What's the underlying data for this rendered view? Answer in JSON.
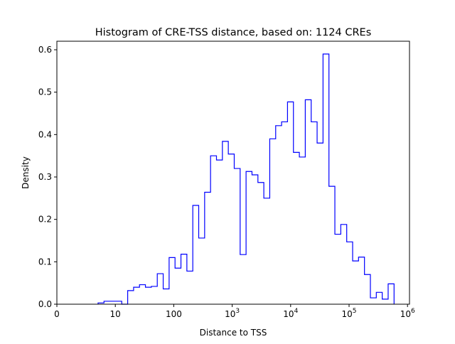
{
  "chart_data": {
    "type": "histogram",
    "title": "Histogram of CRE-TSS distance, based on: 1124 CREs",
    "xlabel": "Distance to TSS",
    "ylabel": "Density",
    "x_scale": "log10 (0 shown at origin)",
    "xlim_log10": [
      0,
      6.05
    ],
    "ylim": [
      0,
      0.62
    ],
    "x_ticks": [
      {
        "log10": 0,
        "label": "0",
        "exp": ""
      },
      {
        "log10": 1,
        "label": "10",
        "exp": ""
      },
      {
        "log10": 2,
        "label": "100",
        "exp": ""
      },
      {
        "log10": 3,
        "label": "10",
        "exp": "3"
      },
      {
        "log10": 4,
        "label": "10",
        "exp": "4"
      },
      {
        "log10": 5,
        "label": "10",
        "exp": "5"
      },
      {
        "log10": 6,
        "label": "10",
        "exp": "6"
      }
    ],
    "y_ticks": [
      "0.0",
      "0.1",
      "0.2",
      "0.3",
      "0.4",
      "0.5",
      "0.6"
    ],
    "grid": false,
    "color": "#0000ff",
    "bin_start_log10": 0.705,
    "bin_width_log10": 0.1013,
    "densities": [
      0.003,
      0.007,
      0.007,
      0.007,
      0.0,
      0.032,
      0.04,
      0.046,
      0.04,
      0.042,
      0.072,
      0.036,
      0.11,
      0.085,
      0.118,
      0.078,
      0.233,
      0.156,
      0.264,
      0.35,
      0.34,
      0.384,
      0.354,
      0.32,
      0.117,
      0.313,
      0.305,
      0.287,
      0.25,
      0.39,
      0.421,
      0.43,
      0.477,
      0.358,
      0.347,
      0.482,
      0.43,
      0.38,
      0.59,
      0.278,
      0.165,
      0.188,
      0.147,
      0.102,
      0.111,
      0.07,
      0.015,
      0.028,
      0.012,
      0.048
    ]
  }
}
